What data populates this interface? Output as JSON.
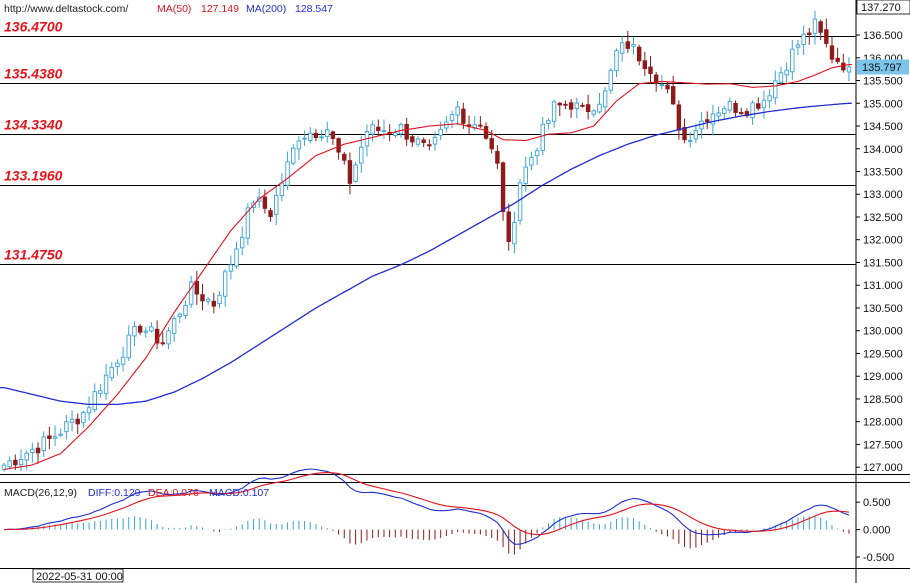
{
  "header": {
    "url": "http://www.deltastock.com/",
    "ma50_label": "MA(50)",
    "ma50_value": "127.149",
    "ma200_label": "MA(200)",
    "ma200_value": "128.547"
  },
  "colors": {
    "bull": "#3aa3dc",
    "bear": "#8e1a1a",
    "ma50": "#e0141e",
    "ma200": "#1f2fcf",
    "level_line": "#000000",
    "level_text": "#e8141c",
    "macd_bar_pos": "#3aa3dc",
    "macd_bar_neg": "#8e1a1a",
    "diff_line": "#1f2fcf",
    "dea_line": "#e0141e",
    "price_tag_bg": "#7cc4ea"
  },
  "price_axis": {
    "top_label": "137.270",
    "ticks": [
      "136.500",
      "136.000",
      "135.500",
      "135.000",
      "134.500",
      "134.000",
      "133.500",
      "133.000",
      "132.500",
      "132.000",
      "131.500",
      "131.000",
      "130.500",
      "130.000",
      "129.500",
      "129.000",
      "128.500",
      "128.000",
      "127.500",
      "127.000"
    ],
    "current_price": "135.797"
  },
  "macd": {
    "label": "MACD(26,12,9)",
    "diff_label": "DIFF:0.129",
    "dea_label": "DEA:0.076",
    "macd_label": "MACD:0.107",
    "ticks": [
      "0.500",
      "0.000",
      "-0.500"
    ]
  },
  "time_axis": {
    "start_label": "2022-05-31 00:00"
  },
  "chart_data": {
    "type": "candlestick",
    "ylim": [
      126.85,
      137.27
    ],
    "macd_ylim": [
      -0.7,
      0.85
    ],
    "levels": [
      136.47,
      135.438,
      134.334,
      133.196,
      131.475
    ],
    "level_labels": [
      "136.4700",
      "135.4380",
      "134.3340",
      "133.1960",
      "131.4750"
    ],
    "candles_count": 150,
    "close_anchors": [
      [
        0,
        127.05
      ],
      [
        8,
        127.6
      ],
      [
        14,
        128.2
      ],
      [
        20,
        129.4
      ],
      [
        24,
        130.1
      ],
      [
        28,
        129.75
      ],
      [
        33,
        130.9
      ],
      [
        37,
        130.6
      ],
      [
        40,
        131.5
      ],
      [
        44,
        132.9
      ],
      [
        47,
        132.6
      ],
      [
        52,
        134.3
      ],
      [
        57,
        134.45
      ],
      [
        61,
        133.3
      ],
      [
        64,
        134.4
      ],
      [
        70,
        134.45
      ],
      [
        75,
        133.9
      ],
      [
        80,
        134.9
      ],
      [
        82,
        134.55
      ],
      [
        84,
        134.6
      ],
      [
        87,
        133.6
      ],
      [
        89,
        131.8
      ],
      [
        91,
        133.3
      ],
      [
        94,
        134.1
      ],
      [
        97,
        134.9
      ],
      [
        100,
        135.0
      ],
      [
        102,
        134.8
      ],
      [
        106,
        135.2
      ],
      [
        108,
        136.1
      ],
      [
        110,
        136.3
      ],
      [
        114,
        135.8
      ],
      [
        117,
        135.2
      ],
      [
        120,
        134.2
      ],
      [
        124,
        134.75
      ],
      [
        127,
        134.95
      ],
      [
        131,
        134.9
      ],
      [
        134,
        135.1
      ],
      [
        137,
        135.7
      ],
      [
        140,
        136.3
      ],
      [
        143,
        136.7
      ],
      [
        146,
        136.05
      ],
      [
        149,
        135.797
      ]
    ],
    "ma50_series": [
      [
        0,
        126.95
      ],
      [
        5,
        127.05
      ],
      [
        10,
        127.3
      ],
      [
        15,
        127.9
      ],
      [
        20,
        128.6
      ],
      [
        25,
        129.4
      ],
      [
        30,
        130.4
      ],
      [
        35,
        131.3
      ],
      [
        40,
        132.2
      ],
      [
        45,
        132.9
      ],
      [
        50,
        133.35
      ],
      [
        55,
        133.85
      ],
      [
        60,
        134.1
      ],
      [
        65,
        134.25
      ],
      [
        70,
        134.4
      ],
      [
        75,
        134.5
      ],
      [
        80,
        134.55
      ],
      [
        85,
        134.4
      ],
      [
        88,
        134.2
      ],
      [
        92,
        134.18
      ],
      [
        96,
        134.32
      ],
      [
        100,
        134.35
      ],
      [
        104,
        134.5
      ],
      [
        108,
        135.05
      ],
      [
        112,
        135.43
      ],
      [
        116,
        135.48
      ],
      [
        120,
        135.45
      ],
      [
        124,
        135.42
      ],
      [
        128,
        135.43
      ],
      [
        132,
        135.35
      ],
      [
        136,
        135.38
      ],
      [
        140,
        135.48
      ],
      [
        143,
        135.62
      ],
      [
        146,
        135.78
      ],
      [
        149,
        135.85
      ]
    ],
    "ma200_series": [
      [
        0,
        128.75
      ],
      [
        5,
        128.6
      ],
      [
        10,
        128.45
      ],
      [
        15,
        128.38
      ],
      [
        20,
        128.38
      ],
      [
        25,
        128.45
      ],
      [
        30,
        128.65
      ],
      [
        35,
        128.95
      ],
      [
        40,
        129.3
      ],
      [
        45,
        129.7
      ],
      [
        50,
        130.1
      ],
      [
        55,
        130.5
      ],
      [
        60,
        130.85
      ],
      [
        65,
        131.2
      ],
      [
        70,
        131.45
      ],
      [
        75,
        131.75
      ],
      [
        80,
        132.1
      ],
      [
        85,
        132.45
      ],
      [
        90,
        132.8
      ],
      [
        95,
        133.2
      ],
      [
        100,
        133.55
      ],
      [
        105,
        133.85
      ],
      [
        110,
        134.1
      ],
      [
        115,
        134.3
      ],
      [
        120,
        134.45
      ],
      [
        125,
        134.6
      ],
      [
        130,
        134.72
      ],
      [
        135,
        134.82
      ],
      [
        140,
        134.9
      ],
      [
        145,
        134.96
      ],
      [
        149,
        135.0
      ]
    ]
  }
}
